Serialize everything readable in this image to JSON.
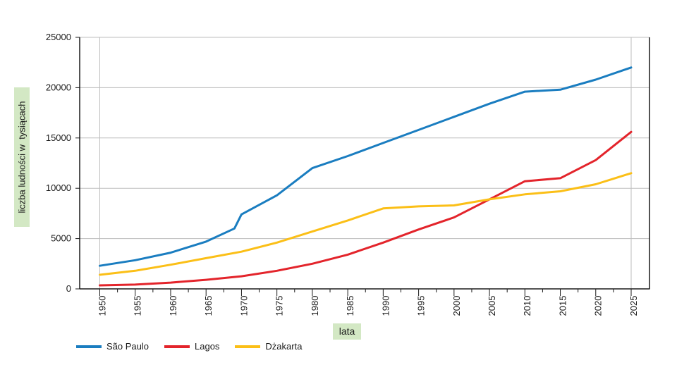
{
  "chart_data": {
    "type": "line",
    "title": "",
    "xlabel": "lata",
    "ylabel": "liczba ludności w  tysiącach",
    "xlim": [
      1950,
      2025
    ],
    "ylim": [
      0,
      25000
    ],
    "x_ticks": [
      "1950",
      "1955",
      "1960",
      "1965",
      "1970",
      "1975",
      "1980",
      "1985",
      "1990",
      "1995",
      "2000",
      "2005",
      "2010",
      "2015",
      "2020",
      "2025"
    ],
    "y_ticks": [
      "0",
      "5000",
      "10000",
      "15000",
      "20000",
      "25000"
    ],
    "grid": true,
    "legend_position": "bottom-left",
    "series": [
      {
        "name": "São Paulo",
        "color": "#1a7dc0",
        "points": [
          [
            1950,
            2300
          ],
          [
            1955,
            2850
          ],
          [
            1960,
            3600
          ],
          [
            1965,
            4700
          ],
          [
            1969,
            6000
          ],
          [
            1970,
            7400
          ],
          [
            1975,
            9300
          ],
          [
            1980,
            12000
          ],
          [
            1985,
            13200
          ],
          [
            1990,
            14500
          ],
          [
            1995,
            15800
          ],
          [
            2000,
            17100
          ],
          [
            2005,
            18400
          ],
          [
            2010,
            19600
          ],
          [
            2015,
            19800
          ],
          [
            2020,
            20800
          ],
          [
            2025,
            22000
          ]
        ]
      },
      {
        "name": "Lagos",
        "color": "#e3242b",
        "points": [
          [
            1950,
            350
          ],
          [
            1955,
            430
          ],
          [
            1960,
            620
          ],
          [
            1965,
            900
          ],
          [
            1970,
            1250
          ],
          [
            1975,
            1800
          ],
          [
            1980,
            2500
          ],
          [
            1985,
            3400
          ],
          [
            1990,
            4600
          ],
          [
            1995,
            5900
          ],
          [
            2000,
            7100
          ],
          [
            2005,
            8900
          ],
          [
            2010,
            10700
          ],
          [
            2015,
            11000
          ],
          [
            2020,
            12800
          ],
          [
            2025,
            15600
          ]
        ]
      },
      {
        "name": "Dżakarta",
        "color": "#fbbf17",
        "points": [
          [
            1950,
            1400
          ],
          [
            1955,
            1800
          ],
          [
            1960,
            2400
          ],
          [
            1965,
            3050
          ],
          [
            1970,
            3700
          ],
          [
            1975,
            4600
          ],
          [
            1980,
            5700
          ],
          [
            1985,
            6800
          ],
          [
            1990,
            8000
          ],
          [
            1995,
            8200
          ],
          [
            2000,
            8300
          ],
          [
            2005,
            8900
          ],
          [
            2010,
            9400
          ],
          [
            2015,
            9700
          ],
          [
            2020,
            10400
          ],
          [
            2025,
            11500
          ]
        ]
      }
    ]
  }
}
